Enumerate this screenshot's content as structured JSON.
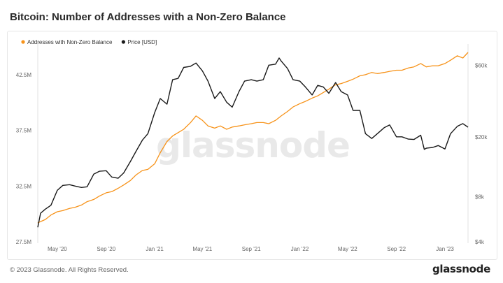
{
  "header": {
    "title": "Bitcoin: Number of Addresses with a Non-Zero Balance"
  },
  "footer": {
    "copyright": "© 2023 Glassnode. All Rights Reserved.",
    "logo": "glassnode"
  },
  "chart_data": {
    "type": "line",
    "watermark": "glassnode",
    "legend_position": "top-left",
    "grid": false,
    "x_range": [
      "2020-03-13",
      "2023-02-28"
    ],
    "x_ticks": [
      {
        "label": "May '20",
        "date": "2020-05-01"
      },
      {
        "label": "Sep '20",
        "date": "2020-09-01"
      },
      {
        "label": "Jan '21",
        "date": "2021-01-01"
      },
      {
        "label": "May '21",
        "date": "2021-05-01"
      },
      {
        "label": "Sep '21",
        "date": "2021-09-01"
      },
      {
        "label": "Jan '22",
        "date": "2022-01-01"
      },
      {
        "label": "May '22",
        "date": "2022-05-01"
      },
      {
        "label": "Sep '22",
        "date": "2022-09-01"
      },
      {
        "label": "Jan '23",
        "date": "2023-01-01"
      }
    ],
    "y_left": {
      "scale": "linear",
      "range": [
        27.5,
        44.5
      ],
      "ticks": [
        {
          "label": "27.5M",
          "value": 27.5
        },
        {
          "label": "32.5M",
          "value": 32.5
        },
        {
          "label": "37.5M",
          "value": 37.5
        },
        {
          "label": "42.5M",
          "value": 42.5
        }
      ]
    },
    "y_right": {
      "scale": "log",
      "unit": "USD",
      "range": [
        4000,
        73000
      ],
      "ticks": [
        {
          "label": "$4k",
          "value": 4000
        },
        {
          "label": "$8k",
          "value": 8000
        },
        {
          "label": "$20k",
          "value": 20000
        },
        {
          "label": "$60k",
          "value": 60000
        }
      ]
    },
    "series": [
      {
        "name": "Addresses with Non-Zero Balance",
        "color": "#f7931a",
        "axis": "left",
        "unit": "millions",
        "points": [
          [
            "2020-03-13",
            29.2
          ],
          [
            "2020-04-01",
            29.5
          ],
          [
            "2020-04-15",
            29.9
          ],
          [
            "2020-05-01",
            30.2
          ],
          [
            "2020-05-15",
            30.3
          ],
          [
            "2020-06-01",
            30.5
          ],
          [
            "2020-06-15",
            30.6
          ],
          [
            "2020-07-01",
            30.8
          ],
          [
            "2020-07-15",
            31.1
          ],
          [
            "2020-08-01",
            31.3
          ],
          [
            "2020-08-15",
            31.6
          ],
          [
            "2020-09-01",
            31.9
          ],
          [
            "2020-09-15",
            32.0
          ],
          [
            "2020-10-01",
            32.3
          ],
          [
            "2020-10-15",
            32.6
          ],
          [
            "2020-11-01",
            33.0
          ],
          [
            "2020-11-15",
            33.5
          ],
          [
            "2020-12-01",
            33.9
          ],
          [
            "2020-12-15",
            34.0
          ],
          [
            "2021-01-01",
            34.5
          ],
          [
            "2021-01-15",
            35.5
          ],
          [
            "2021-02-01",
            36.5
          ],
          [
            "2021-02-15",
            37.0
          ],
          [
            "2021-03-01",
            37.3
          ],
          [
            "2021-03-15",
            37.6
          ],
          [
            "2021-04-01",
            38.2
          ],
          [
            "2021-04-15",
            38.8
          ],
          [
            "2021-05-01",
            38.4
          ],
          [
            "2021-05-15",
            37.9
          ],
          [
            "2021-06-01",
            37.7
          ],
          [
            "2021-06-15",
            37.9
          ],
          [
            "2021-07-01",
            37.6
          ],
          [
            "2021-07-15",
            37.8
          ],
          [
            "2021-08-01",
            37.9
          ],
          [
            "2021-08-15",
            38.0
          ],
          [
            "2021-09-01",
            38.1
          ],
          [
            "2021-09-15",
            38.2
          ],
          [
            "2021-10-01",
            38.2
          ],
          [
            "2021-10-15",
            38.1
          ],
          [
            "2021-11-01",
            38.4
          ],
          [
            "2021-11-15",
            38.8
          ],
          [
            "2021-12-01",
            39.2
          ],
          [
            "2021-12-15",
            39.6
          ],
          [
            "2022-01-01",
            39.9
          ],
          [
            "2022-01-15",
            40.1
          ],
          [
            "2022-02-01",
            40.4
          ],
          [
            "2022-02-15",
            40.6
          ],
          [
            "2022-03-01",
            40.9
          ],
          [
            "2022-03-15",
            41.2
          ],
          [
            "2022-04-01",
            41.6
          ],
          [
            "2022-04-15",
            41.7
          ],
          [
            "2022-05-01",
            41.9
          ],
          [
            "2022-05-15",
            42.1
          ],
          [
            "2022-06-01",
            42.4
          ],
          [
            "2022-06-15",
            42.5
          ],
          [
            "2022-07-01",
            42.7
          ],
          [
            "2022-07-15",
            42.6
          ],
          [
            "2022-08-01",
            42.7
          ],
          [
            "2022-08-15",
            42.8
          ],
          [
            "2022-09-01",
            42.9
          ],
          [
            "2022-09-15",
            42.9
          ],
          [
            "2022-10-01",
            43.1
          ],
          [
            "2022-10-15",
            43.2
          ],
          [
            "2022-11-01",
            43.5
          ],
          [
            "2022-11-15",
            43.2
          ],
          [
            "2022-12-01",
            43.3
          ],
          [
            "2022-12-15",
            43.3
          ],
          [
            "2023-01-01",
            43.5
          ],
          [
            "2023-01-15",
            43.8
          ],
          [
            "2023-02-01",
            44.2
          ],
          [
            "2023-02-15",
            44.0
          ],
          [
            "2023-02-28",
            44.5
          ]
        ]
      },
      {
        "name": "Price [USD]",
        "color": "#1a1a1a",
        "axis": "right",
        "unit": "USD",
        "points": [
          [
            "2020-03-13",
            5000
          ],
          [
            "2020-03-20",
            6200
          ],
          [
            "2020-04-01",
            6600
          ],
          [
            "2020-04-15",
            7000
          ],
          [
            "2020-05-01",
            8800
          ],
          [
            "2020-05-15",
            9500
          ],
          [
            "2020-06-01",
            9600
          ],
          [
            "2020-06-15",
            9400
          ],
          [
            "2020-07-01",
            9200
          ],
          [
            "2020-07-15",
            9300
          ],
          [
            "2020-08-01",
            11300
          ],
          [
            "2020-08-15",
            11800
          ],
          [
            "2020-09-01",
            11900
          ],
          [
            "2020-09-15",
            10800
          ],
          [
            "2020-10-01",
            10600
          ],
          [
            "2020-10-15",
            11500
          ],
          [
            "2020-11-01",
            13700
          ],
          [
            "2020-11-15",
            16000
          ],
          [
            "2020-12-01",
            19000
          ],
          [
            "2020-12-15",
            21000
          ],
          [
            "2021-01-01",
            29000
          ],
          [
            "2021-01-15",
            36000
          ],
          [
            "2021-02-01",
            33000
          ],
          [
            "2021-02-15",
            48000
          ],
          [
            "2021-03-01",
            49000
          ],
          [
            "2021-03-15",
            58000
          ],
          [
            "2021-04-01",
            59000
          ],
          [
            "2021-04-15",
            62000
          ],
          [
            "2021-05-01",
            55000
          ],
          [
            "2021-05-15",
            47000
          ],
          [
            "2021-06-01",
            36000
          ],
          [
            "2021-06-15",
            40000
          ],
          [
            "2021-07-01",
            34000
          ],
          [
            "2021-07-15",
            31500
          ],
          [
            "2021-08-01",
            40000
          ],
          [
            "2021-08-15",
            47000
          ],
          [
            "2021-09-01",
            48000
          ],
          [
            "2021-09-15",
            47000
          ],
          [
            "2021-10-01",
            48000
          ],
          [
            "2021-10-15",
            60000
          ],
          [
            "2021-11-01",
            61000
          ],
          [
            "2021-11-10",
            67000
          ],
          [
            "2021-11-15",
            64000
          ],
          [
            "2021-12-01",
            57000
          ],
          [
            "2021-12-15",
            48000
          ],
          [
            "2022-01-01",
            47000
          ],
          [
            "2022-01-15",
            43000
          ],
          [
            "2022-02-01",
            38000
          ],
          [
            "2022-02-15",
            44000
          ],
          [
            "2022-03-01",
            43000
          ],
          [
            "2022-03-15",
            39000
          ],
          [
            "2022-04-01",
            46000
          ],
          [
            "2022-04-15",
            40000
          ],
          [
            "2022-05-01",
            38000
          ],
          [
            "2022-05-15",
            30000
          ],
          [
            "2022-06-01",
            30000
          ],
          [
            "2022-06-15",
            21000
          ],
          [
            "2022-07-01",
            19500
          ],
          [
            "2022-07-15",
            21000
          ],
          [
            "2022-08-01",
            23000
          ],
          [
            "2022-08-15",
            24000
          ],
          [
            "2022-09-01",
            20000
          ],
          [
            "2022-09-15",
            20000
          ],
          [
            "2022-10-01",
            19300
          ],
          [
            "2022-10-15",
            19200
          ],
          [
            "2022-11-01",
            20500
          ],
          [
            "2022-11-10",
            16500
          ],
          [
            "2022-11-15",
            16800
          ],
          [
            "2022-12-01",
            17000
          ],
          [
            "2022-12-15",
            17500
          ],
          [
            "2023-01-01",
            16600
          ],
          [
            "2023-01-15",
            21000
          ],
          [
            "2023-02-01",
            23500
          ],
          [
            "2023-02-15",
            24500
          ],
          [
            "2023-02-28",
            23200
          ]
        ]
      }
    ]
  }
}
